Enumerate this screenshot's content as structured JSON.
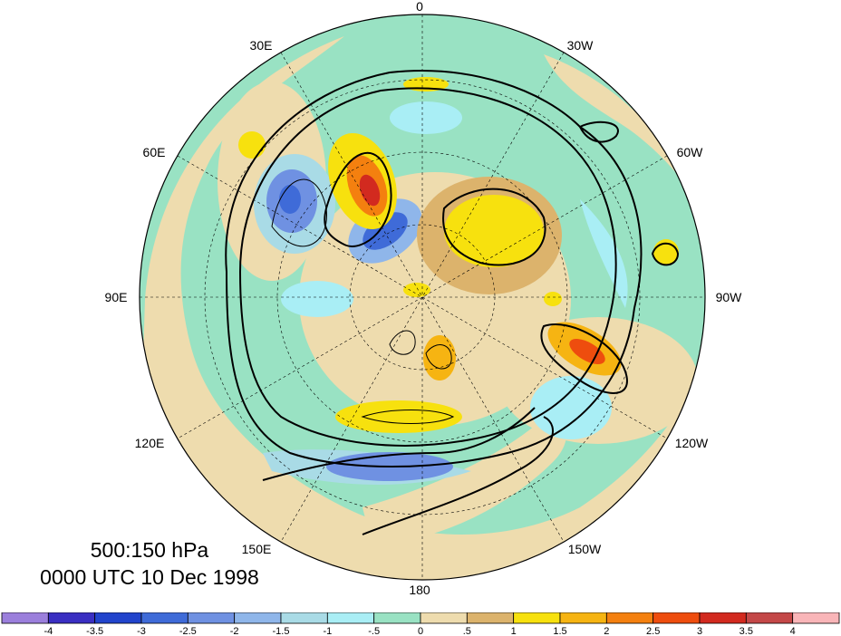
{
  "titles": {
    "level": "500:150 hPa",
    "time": "0000 UTC 10 Dec 1998"
  },
  "longitude_labels": [
    {
      "id": "0",
      "text": "0"
    },
    {
      "id": "30W",
      "text": "30W"
    },
    {
      "id": "60W",
      "text": "60W"
    },
    {
      "id": "90W",
      "text": "90W"
    },
    {
      "id": "120W",
      "text": "120W"
    },
    {
      "id": "150W",
      "text": "150W"
    },
    {
      "id": "180",
      "text": "180"
    },
    {
      "id": "150E",
      "text": "150E"
    },
    {
      "id": "120E",
      "text": "120E"
    },
    {
      "id": "90E",
      "text": "90E"
    },
    {
      "id": "60E",
      "text": "60E"
    },
    {
      "id": "30E",
      "text": "30E"
    }
  ],
  "colorbar": {
    "labels": [
      "-4",
      "-3.5",
      "-3",
      "-2.5",
      "-2",
      "-1.5",
      "-1",
      "-.5",
      "0",
      ".5",
      "1",
      "1.5",
      "2",
      "2.5",
      "3",
      "3.5",
      "4"
    ],
    "colors": [
      "#9b7fdc",
      "#3a2fc2",
      "#2244cc",
      "#3f6bd8",
      "#6f91e2",
      "#8fb6ea",
      "#a9dbe6",
      "#a9eef5",
      "#99e2c3",
      "#eedcae",
      "#dcb36c",
      "#f7e10e",
      "#f6b412",
      "#f4800f",
      "#ee4d0e",
      "#d22a1f",
      "#c44848",
      "#f9b5b8"
    ]
  },
  "map_colors": {
    "neutral_green": "#99e2c3",
    "neutral_tan": "#eedcae",
    "ocean_outline": "#000000"
  }
}
